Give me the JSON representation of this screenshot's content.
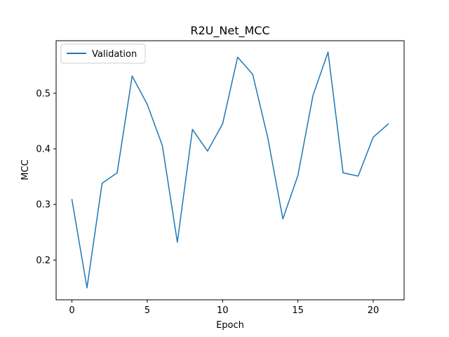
{
  "chart_data": {
    "type": "line",
    "title": "R2U_Net_MCC",
    "xlabel": "Epoch",
    "ylabel": "MCC",
    "xlim": [
      -1.05,
      22.05
    ],
    "ylim": [
      0.1285,
      0.5945
    ],
    "xticks": [
      0,
      5,
      10,
      15,
      20
    ],
    "yticks": [
      0.2,
      0.3,
      0.4,
      0.5
    ],
    "xtick_labels": [
      "0",
      "5",
      "10",
      "15",
      "20"
    ],
    "ytick_labels": [
      "0.2",
      "0.3",
      "0.4",
      "0.5"
    ],
    "grid": false,
    "legend_position": "upper-left",
    "series": [
      {
        "name": "Validation",
        "color": "#1f77b4",
        "x": [
          0,
          1,
          2,
          3,
          4,
          5,
          6,
          7,
          8,
          9,
          10,
          11,
          12,
          13,
          14,
          15,
          16,
          17,
          18,
          19,
          20,
          21
        ],
        "y": [
          0.309,
          0.15,
          0.338,
          0.357,
          0.531,
          0.48,
          0.406,
          0.232,
          0.435,
          0.396,
          0.445,
          0.565,
          0.534,
          0.42,
          0.274,
          0.352,
          0.496,
          0.574,
          0.357,
          0.351,
          0.421,
          0.445
        ]
      }
    ]
  }
}
